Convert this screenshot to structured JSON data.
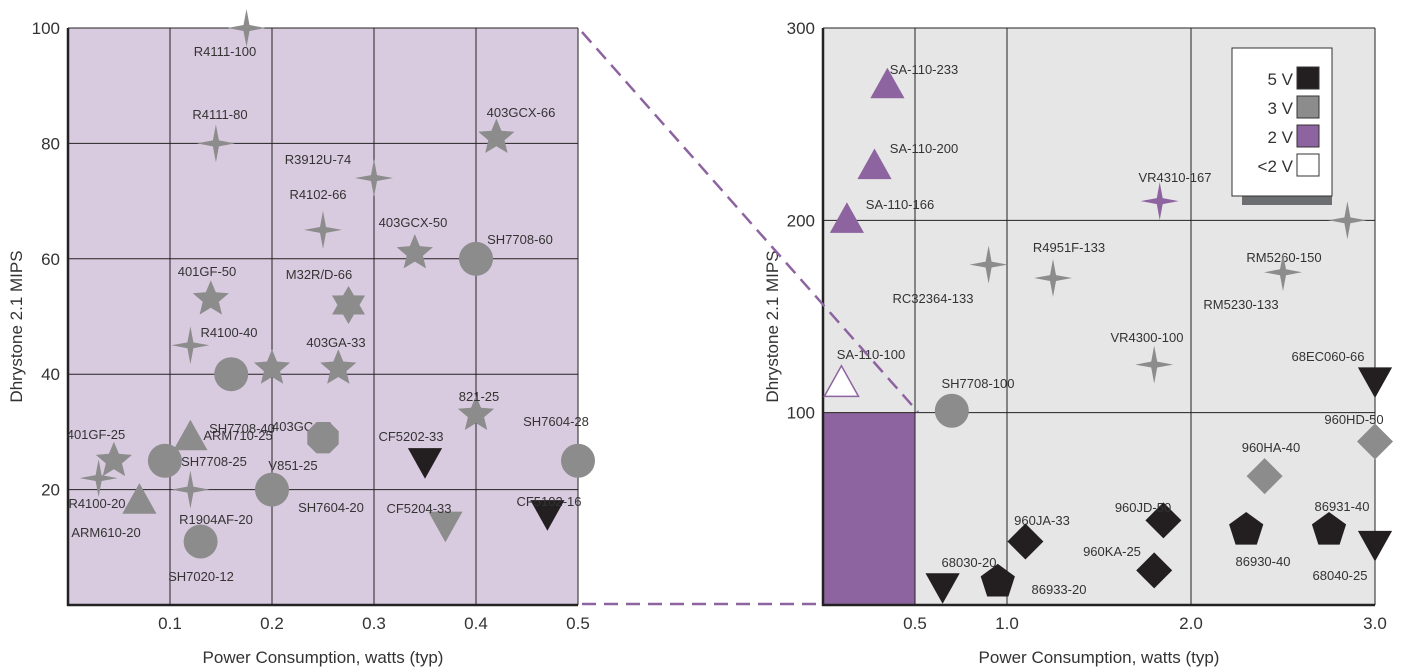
{
  "chart_data": [
    {
      "type": "scatter",
      "xlabel": "Power Consumption, watts (typ)",
      "ylabel": "Dhrystone 2.1 MIPS",
      "xlim": [
        0,
        0.5
      ],
      "ylim": [
        0,
        100
      ],
      "x_ticks": [
        "0.1",
        "0.2",
        "0.3",
        "0.4",
        "0.5"
      ],
      "y_ticks": [
        "20",
        "40",
        "60",
        "80",
        "100"
      ],
      "grid": true,
      "background": "#d9cbdf",
      "points": [
        {
          "label": "R4111-100",
          "x": 0.175,
          "y": 100,
          "shape": "star4",
          "color": "#8c8c8c"
        },
        {
          "label": "R4111-80",
          "x": 0.145,
          "y": 80,
          "shape": "star4",
          "color": "#8c8c8c"
        },
        {
          "label": "403GCX-66",
          "x": 0.42,
          "y": 81,
          "shape": "star5",
          "color": "#8c8c8c"
        },
        {
          "label": "R3912U-74",
          "x": 0.3,
          "y": 74,
          "shape": "star4",
          "color": "#8c8c8c"
        },
        {
          "label": "R4102-66",
          "x": 0.25,
          "y": 65,
          "shape": "star4",
          "color": "#8c8c8c"
        },
        {
          "label": "403GCX-50",
          "x": 0.34,
          "y": 61,
          "shape": "star5",
          "color": "#8c8c8c"
        },
        {
          "label": "SH7708-60",
          "x": 0.4,
          "y": 60,
          "shape": "circle",
          "color": "#8c8c8c"
        },
        {
          "label": "401GF-50",
          "x": 0.14,
          "y": 53,
          "shape": "star5",
          "color": "#8c8c8c"
        },
        {
          "label": "M32R/D-66",
          "x": 0.275,
          "y": 52,
          "shape": "star6",
          "color": "#8c8c8c"
        },
        {
          "label": "R4100-40",
          "x": 0.12,
          "y": 45,
          "shape": "star4",
          "color": "#8c8c8c"
        },
        {
          "label": "SH7708-40",
          "x": 0.16,
          "y": 40,
          "shape": "circle",
          "color": "#8c8c8c"
        },
        {
          "label": "403GC-33",
          "x": 0.2,
          "y": 41,
          "shape": "star5",
          "color": "#8c8c8c"
        },
        {
          "label": "403GA-33",
          "x": 0.265,
          "y": 41,
          "shape": "star5",
          "color": "#8c8c8c"
        },
        {
          "label": "821-25",
          "x": 0.4,
          "y": 33,
          "shape": "star5",
          "color": "#8c8c8c"
        },
        {
          "label": "401GF-25",
          "x": 0.045,
          "y": 25,
          "shape": "star5",
          "color": "#8c8c8c"
        },
        {
          "label": "SH7708-25",
          "x": 0.095,
          "y": 25,
          "shape": "circle",
          "color": "#8c8c8c"
        },
        {
          "label": "ARM710-25",
          "x": 0.12,
          "y": 29,
          "shape": "triangle-up",
          "color": "#8c8c8c"
        },
        {
          "label": "V851-25",
          "x": 0.25,
          "y": 29,
          "shape": "octagon",
          "color": "#8c8c8c"
        },
        {
          "label": "CF5202-33",
          "x": 0.35,
          "y": 25,
          "shape": "triangle-down",
          "color": "#231f20"
        },
        {
          "label": "SH7604-28",
          "x": 0.5,
          "y": 25,
          "shape": "circle",
          "color": "#8c8c8c"
        },
        {
          "label": "R4100-20",
          "x": 0.03,
          "y": 22,
          "shape": "star4",
          "color": "#8c8c8c"
        },
        {
          "label": "ARM610-20",
          "x": 0.07,
          "y": 18,
          "shape": "triangle-up",
          "color": "#8c8c8c"
        },
        {
          "label": "R1904AF-20",
          "x": 0.12,
          "y": 20,
          "shape": "star4",
          "color": "#8c8c8c"
        },
        {
          "label": "SH7604-20",
          "x": 0.2,
          "y": 20,
          "shape": "circle",
          "color": "#8c8c8c"
        },
        {
          "label": "CF5204-33",
          "x": 0.37,
          "y": 14,
          "shape": "triangle-down",
          "color": "#8c8c8c"
        },
        {
          "label": "CF5102-16",
          "x": 0.47,
          "y": 16,
          "shape": "triangle-down",
          "color": "#231f20"
        },
        {
          "label": "SH7020-12",
          "x": 0.13,
          "y": 11,
          "shape": "circle",
          "color": "#8c8c8c"
        }
      ]
    },
    {
      "type": "scatter",
      "xlabel": "Power Consumption, watts (typ)",
      "ylabel": "Dhrystone 2.1 MIPS",
      "xlim": [
        0,
        3.0
      ],
      "ylim": [
        0,
        300
      ],
      "x_ticks": [
        "0.5",
        "1.0",
        "2.0",
        "3.0"
      ],
      "y_ticks": [
        "100",
        "200",
        "300"
      ],
      "grid": true,
      "background": "#e6e6e6",
      "highlight_region": {
        "x": [
          0,
          0.5
        ],
        "y": [
          0,
          100
        ],
        "color": "#8e64a0"
      },
      "legend": {
        "position": "top-right",
        "items": [
          {
            "label": "5 V",
            "color": "#231f20"
          },
          {
            "label": "3 V",
            "color": "#8c8c8c"
          },
          {
            "label": "2 V",
            "color": "#8e64a0"
          },
          {
            "label": "<2 V",
            "color": "#ffffff"
          }
        ]
      },
      "points": [
        {
          "label": "SA-110-233",
          "x": 0.35,
          "y": 270,
          "shape": "triangle-up",
          "color": "#8e64a0"
        },
        {
          "label": "SA-110-200",
          "x": 0.28,
          "y": 228,
          "shape": "triangle-up",
          "color": "#8e64a0"
        },
        {
          "label": "SA-110-166",
          "x": 0.13,
          "y": 200,
          "shape": "triangle-up",
          "color": "#8e64a0"
        },
        {
          "label": "VR4310-167",
          "x": 1.83,
          "y": 210,
          "shape": "star4",
          "color": "#8e64a0"
        },
        {
          "label": "RM5260-150",
          "x": 2.85,
          "y": 200,
          "shape": "star4",
          "color": "#8c8c8c"
        },
        {
          "label": "R4951F-133",
          "x": 1.25,
          "y": 170,
          "shape": "star4",
          "color": "#8c8c8c"
        },
        {
          "label": "RC32364-133",
          "x": 0.9,
          "y": 177,
          "shape": "star4",
          "color": "#8c8c8c"
        },
        {
          "label": "RM5230-133",
          "x": 2.5,
          "y": 173,
          "shape": "star4",
          "color": "#8c8c8c"
        },
        {
          "label": "VR4300-100",
          "x": 1.8,
          "y": 125,
          "shape": "star4",
          "color": "#8c8c8c"
        },
        {
          "label": "SA-110-100",
          "x": 0.1,
          "y": 115,
          "shape": "triangle-up",
          "color": "#ffffff"
        },
        {
          "label": "SH7708-100",
          "x": 0.7,
          "y": 101,
          "shape": "circle",
          "color": "#8c8c8c"
        },
        {
          "label": "68EC060-66",
          "x": 3.0,
          "y": 117,
          "shape": "triangle-down",
          "color": "#231f20"
        },
        {
          "label": "960HD-50",
          "x": 3.0,
          "y": 85,
          "shape": "diamond",
          "color": "#8c8c8c"
        },
        {
          "label": "960HA-40",
          "x": 2.4,
          "y": 67,
          "shape": "diamond",
          "color": "#8c8c8c"
        },
        {
          "label": "960JD-50",
          "x": 1.85,
          "y": 44,
          "shape": "diamond",
          "color": "#231f20"
        },
        {
          "label": "960JA-33",
          "x": 1.1,
          "y": 33,
          "shape": "diamond",
          "color": "#231f20"
        },
        {
          "label": "960KA-25",
          "x": 1.8,
          "y": 18,
          "shape": "diamond",
          "color": "#231f20"
        },
        {
          "label": "86930-40",
          "x": 2.3,
          "y": 39,
          "shape": "pentagon",
          "color": "#231f20"
        },
        {
          "label": "86931-40",
          "x": 2.75,
          "y": 39,
          "shape": "pentagon",
          "color": "#231f20"
        },
        {
          "label": "68040-25",
          "x": 3.0,
          "y": 32,
          "shape": "triangle-down",
          "color": "#231f20"
        },
        {
          "label": "68030-20",
          "x": 0.65,
          "y": 10,
          "shape": "triangle-down",
          "color": "#231f20"
        },
        {
          "label": "86933-20",
          "x": 0.95,
          "y": 12,
          "shape": "pentagon",
          "color": "#231f20"
        }
      ]
    }
  ]
}
